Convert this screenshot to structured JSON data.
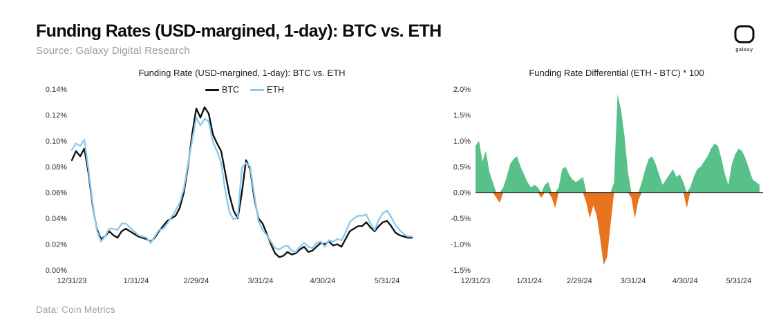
{
  "header": {
    "title": "Funding Rates (USD-margined, 1-day): BTC vs. ETH",
    "subtitle": "Source: Galaxy Digital Research",
    "logo_label": "galaxy"
  },
  "footer": {
    "credit": "Data: Coin Metrics"
  },
  "colors": {
    "btc": "#111111",
    "eth": "#8ccaf0",
    "positive": "#58c189",
    "negative": "#e8731f"
  },
  "chart_data": [
    {
      "type": "line",
      "title": "Funding Rate (USD-margined, 1-day): BTC vs. ETH",
      "x0": 0,
      "x_step": 2,
      "xlim": [
        0,
        166
      ],
      "ylim": [
        0,
        0.14
      ],
      "grid": false,
      "legend_position": "top-center",
      "xticks": [
        {
          "v": 0,
          "label": "12/31/23"
        },
        {
          "v": 31,
          "label": "1/31/24"
        },
        {
          "v": 60,
          "label": "2/29/24"
        },
        {
          "v": 91,
          "label": "3/31/24"
        },
        {
          "v": 121,
          "label": "4/30/24"
        },
        {
          "v": 152,
          "label": "5/31/24"
        }
      ],
      "yticks": [
        {
          "v": 0,
          "label": "0.00%"
        },
        {
          "v": 0.02,
          "label": "0.02%"
        },
        {
          "v": 0.04,
          "label": "0.04%"
        },
        {
          "v": 0.06,
          "label": "0.06%"
        },
        {
          "v": 0.08,
          "label": "0.08%"
        },
        {
          "v": 0.1,
          "label": "0.10%"
        },
        {
          "v": 0.12,
          "label": "0.12%"
        },
        {
          "v": 0.14,
          "label": "0.14%"
        }
      ],
      "series": [
        {
          "name": "BTC",
          "color": "#111111",
          "values": [
            0.085,
            0.092,
            0.088,
            0.094,
            0.075,
            0.05,
            0.032,
            0.024,
            0.026,
            0.03,
            0.027,
            0.025,
            0.03,
            0.032,
            0.03,
            0.028,
            0.026,
            0.025,
            0.024,
            0.022,
            0.025,
            0.03,
            0.034,
            0.038,
            0.04,
            0.042,
            0.048,
            0.06,
            0.08,
            0.105,
            0.125,
            0.118,
            0.126,
            0.121,
            0.105,
            0.098,
            0.092,
            0.075,
            0.058,
            0.046,
            0.04,
            0.06,
            0.085,
            0.078,
            0.055,
            0.04,
            0.036,
            0.028,
            0.02,
            0.013,
            0.01,
            0.011,
            0.014,
            0.012,
            0.013,
            0.016,
            0.018,
            0.014,
            0.015,
            0.018,
            0.021,
            0.02,
            0.022,
            0.019,
            0.02,
            0.018,
            0.024,
            0.03,
            0.032,
            0.034,
            0.034,
            0.037,
            0.033,
            0.03,
            0.034,
            0.037,
            0.038,
            0.034,
            0.029,
            0.027,
            0.026,
            0.025,
            0.025
          ]
        },
        {
          "name": "ETH",
          "color": "#8ccaf0",
          "values": [
            0.093,
            0.098,
            0.096,
            0.101,
            0.078,
            0.052,
            0.031,
            0.022,
            0.026,
            0.032,
            0.032,
            0.031,
            0.036,
            0.036,
            0.033,
            0.03,
            0.027,
            0.026,
            0.025,
            0.021,
            0.026,
            0.031,
            0.032,
            0.036,
            0.041,
            0.046,
            0.052,
            0.063,
            0.082,
            0.1,
            0.118,
            0.112,
            0.117,
            0.115,
            0.099,
            0.092,
            0.083,
            0.061,
            0.045,
            0.039,
            0.041,
            0.079,
            0.083,
            0.08,
            0.058,
            0.038,
            0.031,
            0.027,
            0.022,
            0.017,
            0.016,
            0.018,
            0.019,
            0.015,
            0.014,
            0.018,
            0.021,
            0.018,
            0.017,
            0.021,
            0.022,
            0.018,
            0.023,
            0.022,
            0.024,
            0.023,
            0.029,
            0.037,
            0.04,
            0.042,
            0.042,
            0.043,
            0.036,
            0.031,
            0.039,
            0.044,
            0.046,
            0.041,
            0.035,
            0.031,
            0.028,
            0.026,
            0.026
          ]
        }
      ]
    },
    {
      "type": "area",
      "title": "Funding Rate Differential (ETH - BTC) * 100",
      "x0": 0,
      "x_step": 2,
      "xlim": [
        0,
        166
      ],
      "ylim": [
        -1.5,
        2.0
      ],
      "grid": false,
      "pos_color": "#58c189",
      "neg_color": "#e8731f",
      "xticks": [
        {
          "v": 0,
          "label": "12/31/23"
        },
        {
          "v": 31,
          "label": "1/31/24"
        },
        {
          "v": 60,
          "label": "2/29/24"
        },
        {
          "v": 91,
          "label": "3/31/24"
        },
        {
          "v": 121,
          "label": "4/30/24"
        },
        {
          "v": 152,
          "label": "5/31/24"
        }
      ],
      "yticks": [
        {
          "v": -1.5,
          "label": "-1.5%"
        },
        {
          "v": -1.0,
          "label": "-1.0%"
        },
        {
          "v": -0.5,
          "label": "-0.5%"
        },
        {
          "v": 0,
          "label": "0.0%"
        },
        {
          "v": 0.5,
          "label": "0.5%"
        },
        {
          "v": 1.0,
          "label": "1.0%"
        },
        {
          "v": 1.5,
          "label": "1.5%"
        },
        {
          "v": 2.0,
          "label": "2.0%"
        }
      ],
      "values": [
        0.9,
        1.0,
        0.6,
        0.8,
        0.4,
        0.2,
        -0.1,
        -0.2,
        0.1,
        0.3,
        0.55,
        0.65,
        0.7,
        0.5,
        0.35,
        0.2,
        0.1,
        0.15,
        0.1,
        -0.1,
        0.15,
        0.2,
        -0.1,
        -0.3,
        0.1,
        0.45,
        0.5,
        0.35,
        0.25,
        0.2,
        0.25,
        0.3,
        -0.2,
        -0.5,
        -0.25,
        -0.45,
        -0.9,
        -1.4,
        -1.25,
        -0.6,
        0.2,
        1.9,
        1.6,
        1.1,
        0.4,
        -0.1,
        -0.5,
        -0.15,
        0.2,
        0.45,
        0.65,
        0.7,
        0.55,
        0.35,
        0.15,
        0.25,
        0.35,
        0.45,
        0.3,
        0.35,
        0.2,
        -0.3,
        0.1,
        0.3,
        0.45,
        0.5,
        0.6,
        0.7,
        0.85,
        0.95,
        0.9,
        0.65,
        0.35,
        0.15,
        0.55,
        0.75,
        0.85,
        0.8,
        0.65,
        0.45,
        0.25,
        0.2,
        0.15
      ]
    }
  ]
}
